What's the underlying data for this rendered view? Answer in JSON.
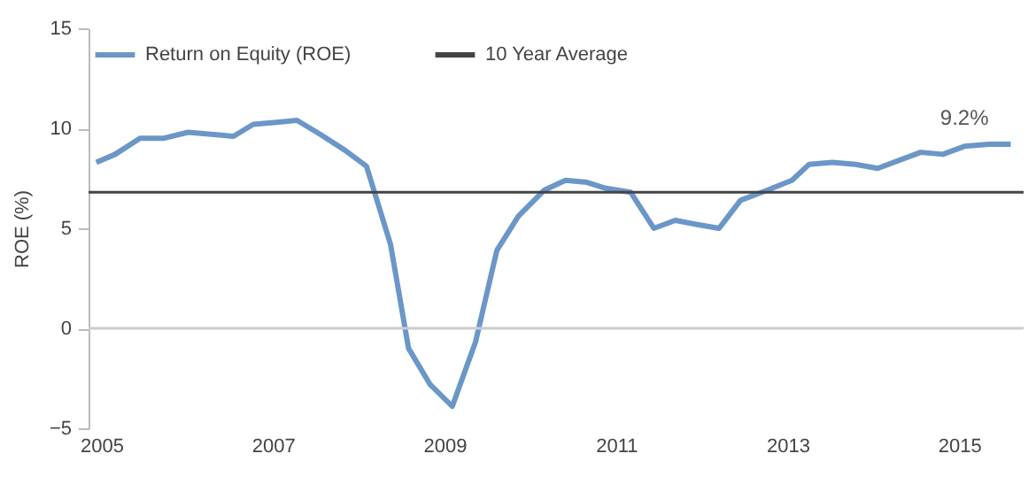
{
  "chart_data": {
    "type": "line",
    "ylabel": "ROE (%)",
    "series": [
      {
        "name": "Return on Equity (ROE)",
        "color": "#6b96c8",
        "x": [
          2004.94,
          2005.16,
          2005.45,
          2005.72,
          2006.01,
          2006.28,
          2006.54,
          2006.77,
          2007.04,
          2007.28,
          2007.55,
          2007.84,
          2008.09,
          2008.37,
          2008.58,
          2008.83,
          2009.09,
          2009.36,
          2009.61,
          2009.86,
          2010.16,
          2010.41,
          2010.66,
          2010.88,
          2011.17,
          2011.44,
          2011.69,
          2011.93,
          2012.2,
          2012.45,
          2012.76,
          2013.05,
          2013.25,
          2013.52,
          2013.79,
          2014.05,
          2014.3,
          2014.55,
          2014.81,
          2015.06,
          2015.35,
          2015.6
        ],
        "values": [
          8.3,
          8.7,
          9.5,
          9.5,
          9.8,
          9.7,
          9.6,
          10.2,
          10.3,
          10.4,
          9.7,
          8.9,
          8.1,
          4.2,
          -1.0,
          -2.8,
          -3.9,
          -0.7,
          3.9,
          5.6,
          6.9,
          7.4,
          7.3,
          7.0,
          6.8,
          5.0,
          5.4,
          5.2,
          5.0,
          6.4,
          6.9,
          7.4,
          8.2,
          8.3,
          8.2,
          8.0,
          8.4,
          8.8,
          8.7,
          9.1,
          9.2,
          9.2
        ]
      }
    ],
    "ref_lines": [
      {
        "axis": "y",
        "value": 0,
        "label": null,
        "color": "#cccccc"
      },
      {
        "axis": "y",
        "value": 6.8,
        "label": "10 Year Average",
        "color": "#444444"
      }
    ],
    "annotations": [
      {
        "text": "9.2%",
        "x": 2015.06,
        "y": 9.1
      }
    ],
    "xlim": [
      2004.85,
      2015.75
    ],
    "xticks": [
      2005,
      2007,
      2009,
      2011,
      2013,
      2015
    ],
    "ylim": [
      -5,
      15
    ],
    "yticks": [
      -5,
      0,
      5,
      10,
      15
    ],
    "grid": false,
    "legend": "top left"
  }
}
